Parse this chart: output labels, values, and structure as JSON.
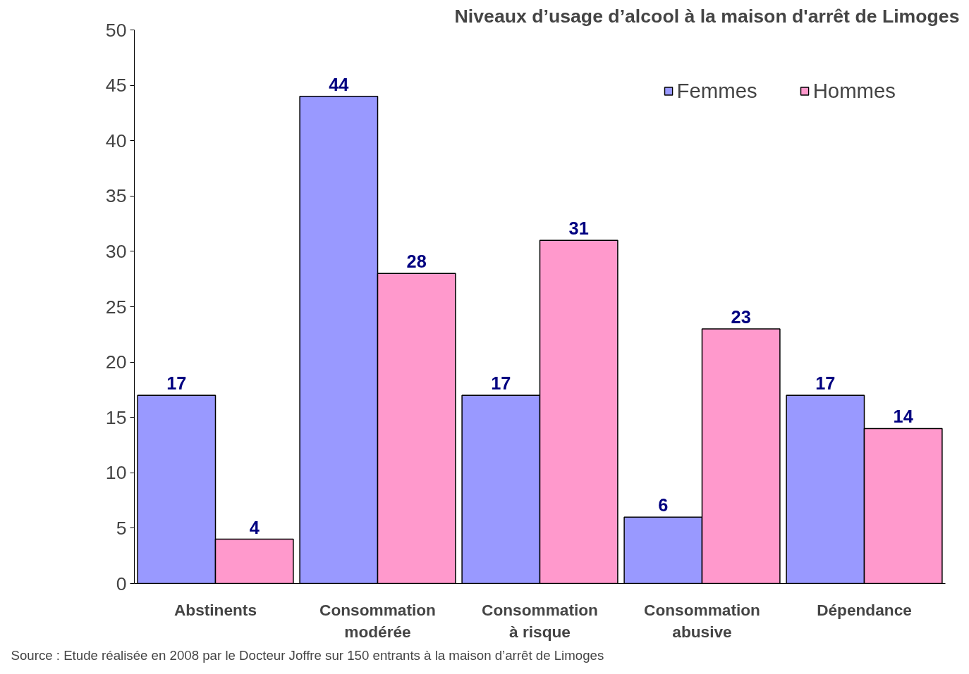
{
  "chart_data": {
    "type": "bar",
    "title": "Niveaux d’usage d’alcool à la maison d'arrêt de Limoges",
    "categories": [
      "Abstinents",
      "Consommation modérée",
      "Consommation à risque",
      "Consommation abusive",
      "Dépendance"
    ],
    "series": [
      {
        "name": "Femmes",
        "color": "#9999ff",
        "values": [
          17,
          44,
          17,
          6,
          17
        ]
      },
      {
        "name": "Hommes",
        "color": "#ff99cc",
        "values": [
          4,
          28,
          31,
          23,
          14
        ]
      }
    ],
    "ylim": [
      0,
      50
    ],
    "yticks": [
      0,
      5,
      10,
      15,
      20,
      25,
      30,
      35,
      40,
      45,
      50
    ],
    "data_labels": true,
    "grid": false,
    "legend": "top right",
    "annotations": [
      "Source : Etude réalisée en 2008 par le Docteur Joffre sur 150 entrants à la maison d’arrêt de Limoges"
    ]
  }
}
